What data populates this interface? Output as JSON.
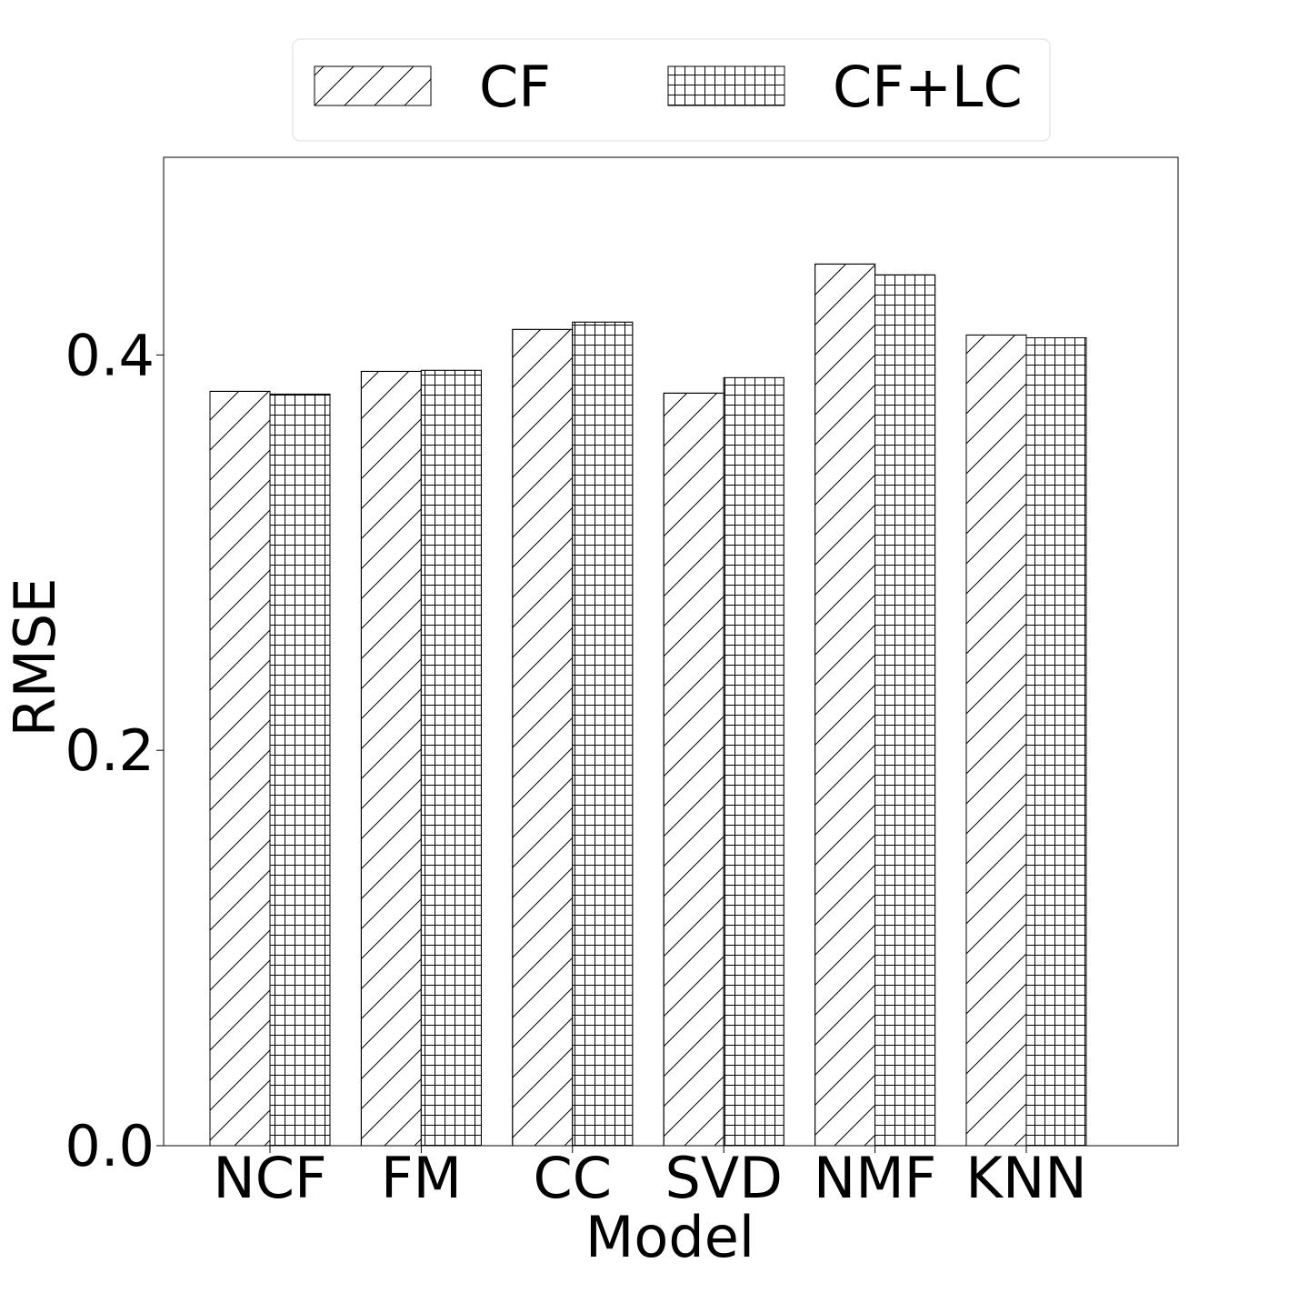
{
  "chart_data": {
    "type": "bar",
    "x_label": "Model",
    "y_label": "RMSE",
    "categories": [
      "NCF",
      "FM",
      "CC",
      "SVD",
      "NMF",
      "KNN"
    ],
    "series": [
      {
        "name": "CF",
        "color": "#ffffff",
        "hatch": "/",
        "values": [
          0.3816,
          0.3917,
          0.4129,
          0.3807,
          0.446,
          0.4101
        ]
      },
      {
        "name": "CF+LC",
        "color": "#ffffff",
        "hatch": "+",
        "values": [
          0.3802,
          0.3922,
          0.4166,
          0.3885,
          0.4405,
          0.4087
        ]
      }
    ],
    "ylim": [
      0,
      0.5
    ],
    "yticks": [
      {
        "value": 0,
        "label": "0.0"
      },
      0.2,
      0.4
    ],
    "grid": false,
    "legend": "top"
  }
}
